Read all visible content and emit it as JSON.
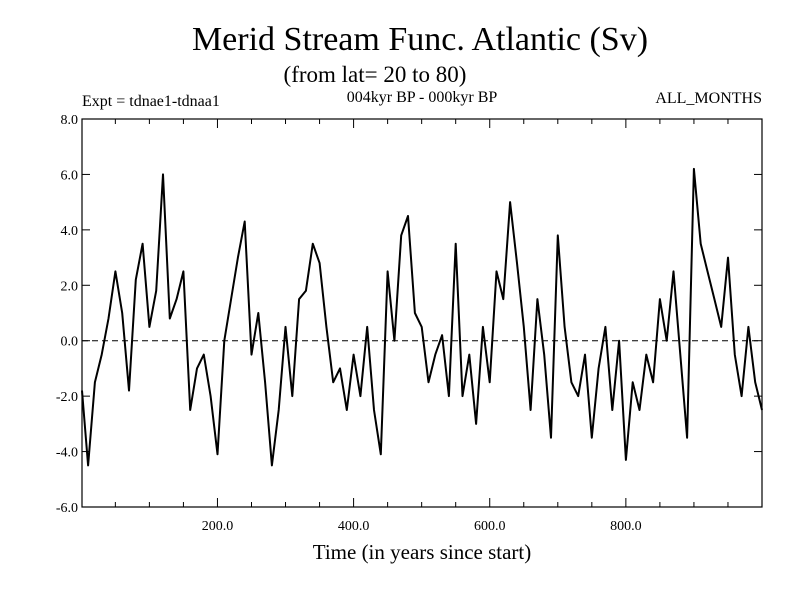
{
  "chart_data": {
    "type": "line",
    "title": "Merid Stream Func. Atlantic (Sv)",
    "subtitle": "(from lat= 20 to 80)",
    "header_left": "Expt = tdnae1-tdnaa1",
    "header_center": "004kyr BP - 000kyr BP",
    "header_right": "ALL_MONTHS",
    "xlabel": "Time (in years since start)",
    "ylabel": "",
    "xlim": [
      1,
      1000
    ],
    "ylim": [
      -6.0,
      8.0
    ],
    "x_ticks": [
      200,
      400,
      600,
      800
    ],
    "x_tick_labels": [
      "200.0",
      "400.0",
      "600.0",
      "800.0"
    ],
    "y_ticks": [
      -6,
      -4,
      -2,
      0,
      2,
      4,
      6,
      8
    ],
    "y_tick_labels": [
      "-6.0",
      "-4.0",
      "-2.0",
      "0.0",
      "2.0",
      "4.0",
      "6.0",
      "8.0"
    ],
    "zero_reference_line": "dashed",
    "grid": false,
    "series": [
      {
        "x": [
          1,
          10,
          20,
          30,
          40,
          50,
          60,
          70,
          80,
          90,
          100,
          110,
          120,
          130,
          140,
          150,
          160,
          170,
          180,
          190,
          200,
          210,
          220,
          230,
          240,
          250,
          260,
          270,
          280,
          290,
          300,
          310,
          320,
          330,
          340,
          350,
          360,
          370,
          380,
          390,
          400,
          410,
          420,
          430,
          440,
          450,
          460,
          470,
          480,
          490,
          500,
          510,
          520,
          530,
          540,
          550,
          560,
          570,
          580,
          590,
          600,
          610,
          620,
          630,
          640,
          650,
          660,
          670,
          680,
          690,
          700,
          710,
          720,
          730,
          740,
          750,
          760,
          770,
          780,
          790,
          800,
          810,
          820,
          830,
          840,
          850,
          860,
          870,
          880,
          890,
          900,
          910,
          920,
          930,
          940,
          950,
          960,
          970,
          980,
          990,
          1000
        ],
        "values": [
          -1.8,
          -4.5,
          -1.5,
          -0.5,
          0.8,
          2.5,
          1.0,
          -1.8,
          2.2,
          3.5,
          0.5,
          1.8,
          6.0,
          0.8,
          1.5,
          2.5,
          -2.5,
          -1.0,
          -0.5,
          -2.0,
          -4.1,
          0.0,
          1.5,
          3.0,
          4.3,
          -0.5,
          1.0,
          -1.5,
          -4.5,
          -2.5,
          0.5,
          -2.0,
          1.5,
          1.8,
          3.5,
          2.8,
          0.5,
          -1.5,
          -1.0,
          -2.5,
          -0.5,
          -2.0,
          0.5,
          -2.5,
          -4.1,
          2.5,
          0.0,
          3.8,
          4.5,
          1.0,
          0.5,
          -1.5,
          -0.5,
          0.2,
          -2.0,
          3.5,
          -2.0,
          -0.5,
          -3.0,
          0.5,
          -1.5,
          2.5,
          1.5,
          5.0,
          2.8,
          0.5,
          -2.5,
          1.5,
          -0.5,
          -3.5,
          3.8,
          0.5,
          -1.5,
          -2.0,
          -0.5,
          -3.5,
          -1.0,
          0.5,
          -2.5,
          0.0,
          -4.3,
          -1.5,
          -2.5,
          -0.5,
          -1.5,
          1.5,
          0.0,
          2.5,
          -0.5,
          -3.5,
          6.2,
          3.5,
          2.5,
          1.5,
          0.5,
          3.0,
          -0.5,
          -2.0,
          0.5,
          -1.5,
          -2.5
        ]
      }
    ]
  }
}
